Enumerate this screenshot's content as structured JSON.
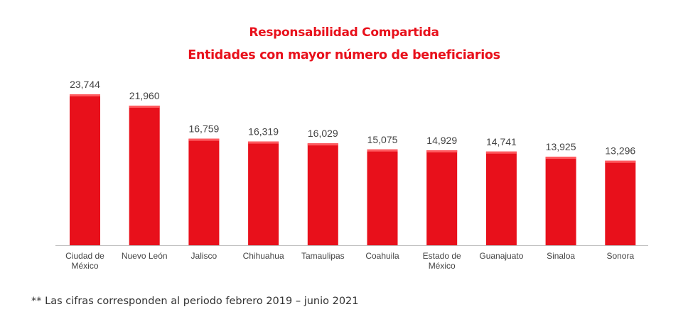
{
  "title_line1": "Responsabilidad Compartida",
  "title_line2": "Entidades con mayor número de beneficiarios",
  "footnote": "** Las cifras corresponden al periodo febrero 2019 – junio 2021",
  "colors": {
    "bar": "#e8101b",
    "bar_top": "#ff5a5f",
    "title": "#e8101b",
    "axis": "#bfbfbf",
    "text": "#444444"
  },
  "chart_data": {
    "type": "bar",
    "title": "Entidades con mayor número de beneficiarios",
    "categories": [
      [
        "Ciudad de",
        "México"
      ],
      [
        "Nuevo León"
      ],
      [
        "Jalisco"
      ],
      [
        "Chihuahua"
      ],
      [
        "Tamaulipas"
      ],
      [
        "Coahuila"
      ],
      [
        "Estado de",
        "México"
      ],
      [
        "Guanajuato"
      ],
      [
        "Sinaloa"
      ],
      [
        "Sonora"
      ]
    ],
    "values": [
      23744,
      21960,
      16759,
      16319,
      16029,
      15075,
      14929,
      14741,
      13925,
      13296
    ],
    "labels": [
      "23,744",
      "21,960",
      "16,759",
      "16,319",
      "16,029",
      "15,075",
      "14,929",
      "14,741",
      "13,925",
      "13,296"
    ],
    "ylim": [
      0,
      23744
    ],
    "xlabel": "",
    "ylabel": ""
  }
}
